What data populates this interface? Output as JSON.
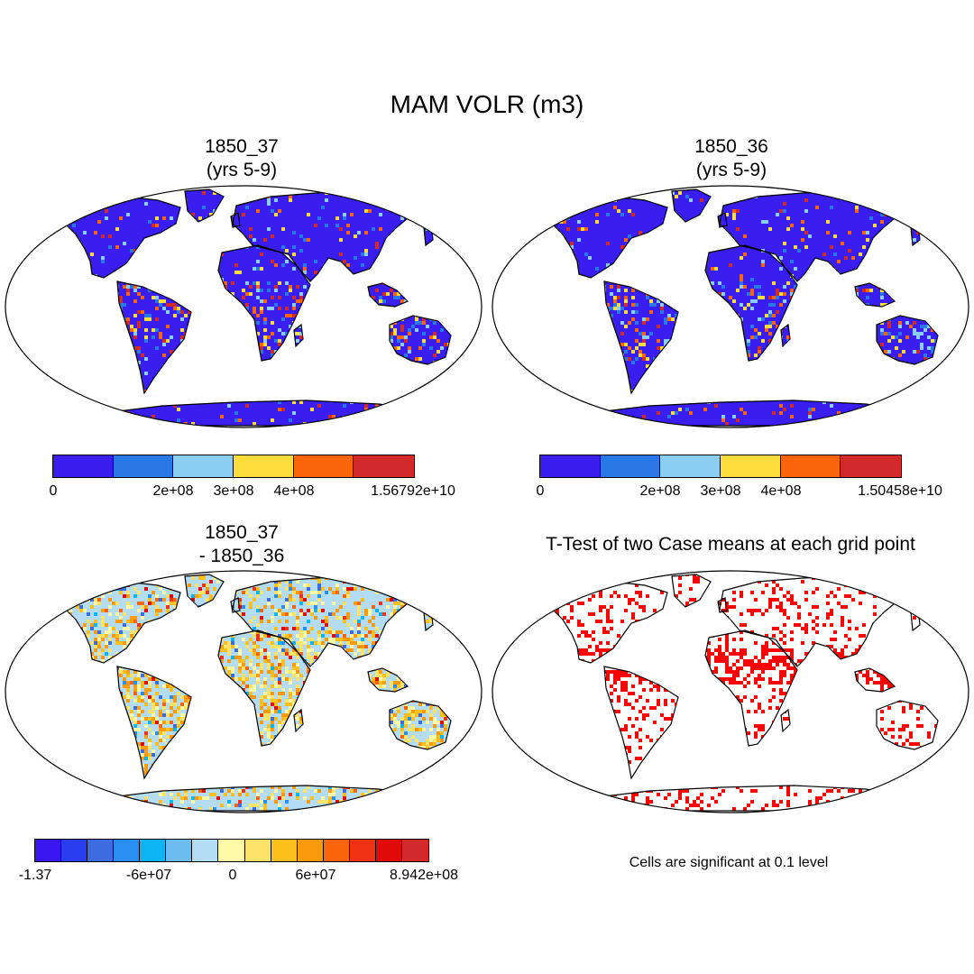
{
  "title": "MAM VOLR (m3)",
  "panels": {
    "p1": {
      "title_line1": "1850_37",
      "title_line2": "(yrs 5-9)"
    },
    "p2": {
      "title_line1": "1850_36",
      "title_line2": "(yrs 5-9)"
    },
    "p3": {
      "title_line1": "1850_37",
      "title_line2": "- 1850_36"
    },
    "p4": {
      "title_line1": "T-Test of two Case means at each grid point",
      "note": "Cells are significant at 0.1 level"
    }
  },
  "colorbars": {
    "cb1": {
      "colors": [
        "#3a1ef0",
        "#2a78e8",
        "#8ccdf2",
        "#fddd3c",
        "#fb640a",
        "#d22a2a"
      ],
      "labels": [
        "0",
        "2e+08",
        "3e+08",
        "4e+08",
        "1.56792e+10"
      ]
    },
    "cb2": {
      "colors": [
        "#3a1ef0",
        "#2a78e8",
        "#8ccdf2",
        "#fddd3c",
        "#fb640a",
        "#d22a2a"
      ],
      "labels": [
        "0",
        "2e+08",
        "3e+08",
        "4e+08",
        "1.50458e+10"
      ]
    },
    "cb3": {
      "colors": [
        "#3a16f0",
        "#2a3ef0",
        "#3c6ce0",
        "#2a8ef0",
        "#0cb4f4",
        "#6cbcf0",
        "#b4dcf4",
        "#fefaa8",
        "#fde36a",
        "#fcbf1c",
        "#fb9a0a",
        "#f9640a",
        "#f03214",
        "#e00a0a",
        "#d22a2a"
      ],
      "labels": [
        "-1.37",
        "-6e+07",
        "0",
        "6e+07",
        "8.942e+08"
      ]
    }
  },
  "map_colors": {
    "ocean": "#ffffff",
    "land_base_abs": "#3a1ef0",
    "land_base_diff": "#b4dcf4",
    "diff_warm": "#fefaa8",
    "significant": "#ff0000",
    "coast": "#000000"
  }
}
